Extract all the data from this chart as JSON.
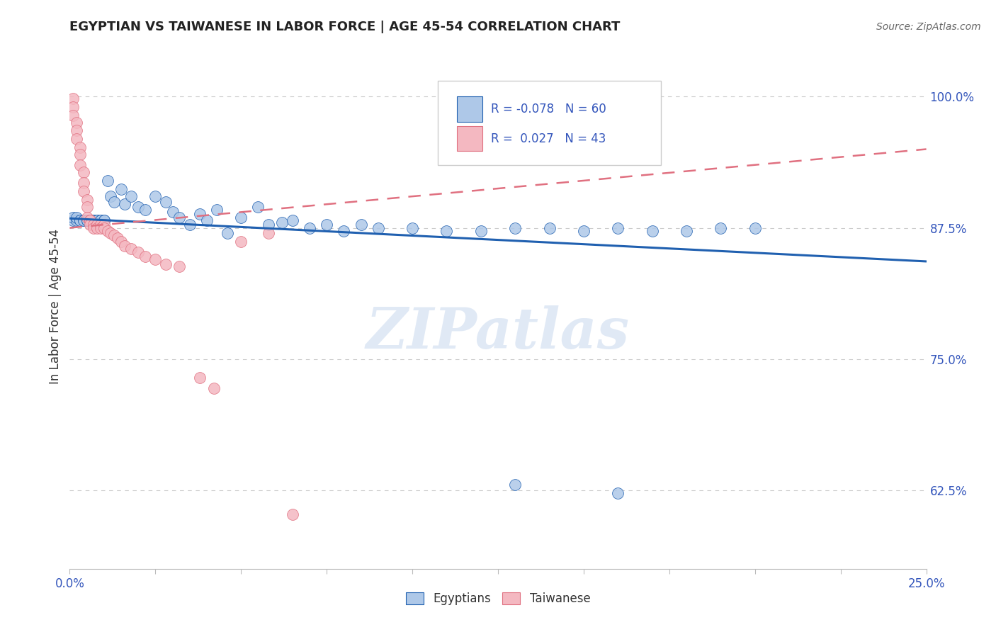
{
  "title": "EGYPTIAN VS TAIWANESE IN LABOR FORCE | AGE 45-54 CORRELATION CHART",
  "source": "Source: ZipAtlas.com",
  "ylabel": "In Labor Force | Age 45-54",
  "legend_R_blue": "-0.078",
  "legend_N_blue": "60",
  "legend_R_pink": "0.027",
  "legend_N_pink": "43",
  "blue_color": "#aec8e8",
  "pink_color": "#f4b8c1",
  "line_blue": "#2060b0",
  "line_pink": "#e07080",
  "background_color": "#ffffff",
  "xlim": [
    0.0,
    0.25
  ],
  "ylim": [
    0.55,
    1.05
  ],
  "yticks": [
    0.625,
    0.75,
    0.875,
    1.0
  ],
  "ytick_labels": [
    "62.5%",
    "75.0%",
    "87.5%",
    "100.0%"
  ],
  "blue_x": [
    0.001,
    0.001,
    0.002,
    0.002,
    0.003,
    0.003,
    0.004,
    0.004,
    0.005,
    0.005,
    0.006,
    0.006,
    0.007,
    0.007,
    0.008,
    0.008,
    0.009,
    0.009,
    0.01,
    0.01,
    0.011,
    0.012,
    0.013,
    0.015,
    0.016,
    0.018,
    0.02,
    0.022,
    0.025,
    0.028,
    0.03,
    0.032,
    0.035,
    0.038,
    0.04,
    0.043,
    0.046,
    0.05,
    0.055,
    0.058,
    0.062,
    0.065,
    0.07,
    0.075,
    0.08,
    0.085,
    0.09,
    0.1,
    0.11,
    0.12,
    0.13,
    0.14,
    0.15,
    0.16,
    0.17,
    0.18,
    0.19,
    0.2,
    0.13,
    0.16
  ],
  "blue_y": [
    0.882,
    0.885,
    0.882,
    0.885,
    0.882,
    0.882,
    0.882,
    0.882,
    0.882,
    0.882,
    0.882,
    0.882,
    0.882,
    0.882,
    0.882,
    0.882,
    0.882,
    0.882,
    0.882,
    0.882,
    0.92,
    0.905,
    0.9,
    0.912,
    0.898,
    0.905,
    0.895,
    0.892,
    0.905,
    0.9,
    0.89,
    0.885,
    0.878,
    0.888,
    0.882,
    0.892,
    0.87,
    0.885,
    0.895,
    0.878,
    0.88,
    0.882,
    0.875,
    0.878,
    0.872,
    0.878,
    0.875,
    0.875,
    0.872,
    0.872,
    0.875,
    0.875,
    0.872,
    0.875,
    0.872,
    0.872,
    0.875,
    0.875,
    0.63,
    0.622
  ],
  "pink_x": [
    0.001,
    0.001,
    0.001,
    0.002,
    0.002,
    0.002,
    0.003,
    0.003,
    0.003,
    0.004,
    0.004,
    0.004,
    0.005,
    0.005,
    0.005,
    0.006,
    0.006,
    0.006,
    0.007,
    0.007,
    0.008,
    0.008,
    0.009,
    0.009,
    0.01,
    0.01,
    0.011,
    0.012,
    0.013,
    0.014,
    0.015,
    0.016,
    0.018,
    0.02,
    0.022,
    0.025,
    0.028,
    0.032,
    0.038,
    0.042,
    0.05,
    0.058,
    0.065
  ],
  "pink_y": [
    0.998,
    0.99,
    0.982,
    0.975,
    0.968,
    0.96,
    0.952,
    0.945,
    0.935,
    0.928,
    0.918,
    0.91,
    0.902,
    0.895,
    0.885,
    0.882,
    0.882,
    0.878,
    0.878,
    0.875,
    0.878,
    0.875,
    0.878,
    0.875,
    0.878,
    0.875,
    0.872,
    0.87,
    0.868,
    0.865,
    0.862,
    0.858,
    0.855,
    0.852,
    0.848,
    0.845,
    0.84,
    0.838,
    0.732,
    0.722,
    0.862,
    0.87,
    0.602
  ]
}
